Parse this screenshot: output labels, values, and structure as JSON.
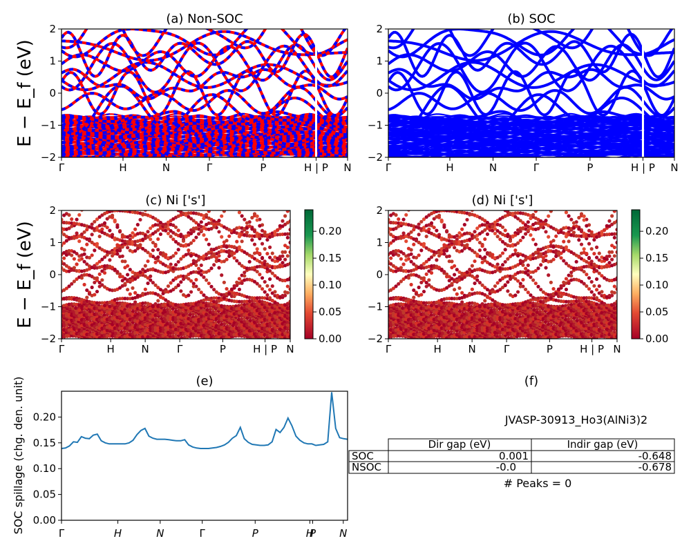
{
  "chart_data": [
    {
      "type": "line",
      "panel": "a",
      "title": "(a) Non-SOC",
      "ylabel": "E − E_f (eV)",
      "ylim": [
        -2,
        2
      ],
      "y_ticks": [
        "2",
        "1",
        "0",
        "−1",
        "−2"
      ],
      "x_ticks": [
        "Γ",
        "H",
        "N",
        "Γ",
        "P",
        "H | P",
        "N"
      ],
      "series": [
        {
          "color": "#ff0000",
          "dashed": false
        },
        {
          "color": "#0000ff",
          "dashed": true
        }
      ]
    },
    {
      "type": "line",
      "panel": "b",
      "title": "(b) SOC",
      "ylim": [
        -2,
        2
      ],
      "y_ticks": [
        "2",
        "1",
        "0",
        "−1",
        "−2"
      ],
      "x_ticks": [
        "Γ",
        "H",
        "N",
        "Γ",
        "P",
        "H | P",
        "N"
      ],
      "series": [
        {
          "color": "#0000ff"
        }
      ]
    },
    {
      "type": "scatter",
      "panel": "c",
      "title": "(c)  Ni ['s']",
      "ylabel": "E − E_f (eV)",
      "ylim": [
        -2,
        2
      ],
      "y_ticks": [
        "2",
        "1",
        "0",
        "−1",
        "−2"
      ],
      "x_ticks": [
        "Γ",
        "H",
        "N",
        "Γ",
        "P",
        "H | P",
        "N"
      ],
      "colorbar": {
        "min": 0.0,
        "max": 0.24,
        "ticks": [
          "0.20",
          "0.15",
          "0.10",
          "0.05",
          "0.00"
        ],
        "cmap": "RdYlGn"
      }
    },
    {
      "type": "scatter",
      "panel": "d",
      "title": "(d) Ni ['s']",
      "ylim": [
        -2,
        2
      ],
      "y_ticks": [
        "2",
        "1",
        "0",
        "−1",
        "−2"
      ],
      "x_ticks": [
        "Γ",
        "H",
        "N",
        "Γ",
        "P",
        "H | P",
        "N"
      ],
      "colorbar": {
        "min": 0.0,
        "max": 0.24,
        "ticks": [
          "0.20",
          "0.15",
          "0.10",
          "0.05",
          "0.00"
        ],
        "cmap": "RdYlGn"
      }
    },
    {
      "type": "line",
      "panel": "e",
      "title": "(e)",
      "ylabel": "SOC spillage (chg. den. unit)",
      "ylim": [
        0,
        0.25
      ],
      "y_ticks": [
        "0.20",
        "0.15",
        "0.10",
        "0.05",
        "0.00"
      ],
      "x_ticks": [
        "Γ",
        "H",
        "N",
        "Γ",
        "P",
        "H",
        "P",
        "N"
      ],
      "series": [
        {
          "color": "#1f77b4",
          "values": [
            0.139,
            0.14,
            0.144,
            0.152,
            0.151,
            0.162,
            0.159,
            0.158,
            0.165,
            0.167,
            0.154,
            0.15,
            0.148,
            0.148,
            0.148,
            0.148,
            0.148,
            0.15,
            0.155,
            0.166,
            0.174,
            0.178,
            0.163,
            0.159,
            0.157,
            0.157,
            0.157,
            0.156,
            0.155,
            0.154,
            0.154,
            0.156,
            0.146,
            0.142,
            0.14,
            0.139,
            0.139,
            0.139,
            0.14,
            0.141,
            0.143,
            0.146,
            0.151,
            0.159,
            0.164,
            0.18,
            0.158,
            0.151,
            0.147,
            0.146,
            0.145,
            0.145,
            0.146,
            0.152,
            0.176,
            0.17,
            0.18,
            0.198,
            0.183,
            0.163,
            0.155,
            0.15,
            0.148,
            0.148,
            0.145,
            0.146,
            0.147,
            0.152,
            0.248,
            0.178,
            0.16,
            0.158,
            0.157
          ]
        }
      ]
    },
    {
      "type": "table",
      "panel": "f",
      "title": "(f)",
      "caption": "JVASP-30913_Ho3(AlNi3)2",
      "headers": [
        "Dir gap (eV)",
        "Indir gap (eV)"
      ],
      "rows": [
        {
          "label": "SOC",
          "values": [
            "0.001",
            "-0.648"
          ]
        },
        {
          "label": "NSOC",
          "values": [
            "-0.0",
            "-0.678"
          ]
        }
      ],
      "footer": "# Peaks = 0"
    }
  ]
}
